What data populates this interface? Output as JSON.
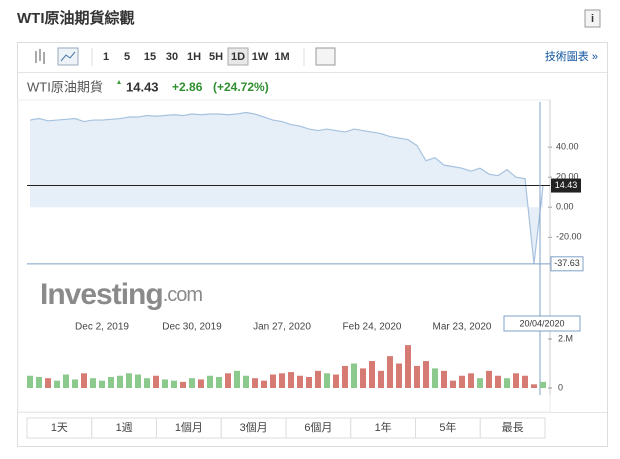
{
  "header": {
    "title": "WTI原油期貨綜觀",
    "info_icon": "i"
  },
  "toolbar": {
    "intervals": [
      "1",
      "5",
      "15",
      "30",
      "1H",
      "5H",
      "1D",
      "1W",
      "1M"
    ],
    "active_index": 6,
    "link": "技術圖表 »"
  },
  "quote": {
    "name": "WTI原油期貨",
    "price": 14.43,
    "change": "+2.86",
    "change_pct": "(+24.72%)"
  },
  "chart": {
    "type": "area",
    "values": [
      58,
      59,
      57.5,
      58,
      58.5,
      59,
      57,
      58,
      58,
      58.5,
      59,
      60,
      60,
      61,
      60.5,
      61,
      61.5,
      61,
      62,
      61.5,
      62,
      62,
      61.5,
      62,
      63,
      62,
      60,
      58,
      57,
      55,
      54,
      52,
      51,
      52,
      51,
      50,
      52,
      51,
      50,
      49,
      47,
      46,
      45,
      41,
      31,
      33,
      28,
      27,
      26,
      24,
      26,
      22,
      21,
      25,
      20,
      19,
      -37.63,
      14.43
    ],
    "ylim": [
      -75,
      70
    ],
    "yticks": [
      {
        "value": 40,
        "label": "40.00"
      },
      {
        "value": 20,
        "label": "20.00"
      },
      {
        "value": 0,
        "label": "0.00"
      },
      {
        "value": -20,
        "label": "-20.00"
      }
    ],
    "xticks": [
      {
        "value": 8,
        "label": "Dec 2, 2019"
      },
      {
        "value": 18,
        "label": "Dec 30, 2019"
      },
      {
        "value": 28,
        "label": "Jan 27, 2020"
      },
      {
        "value": 38,
        "label": "Feb 24, 2020"
      },
      {
        "value": 48,
        "label": "Mar 23, 2020"
      }
    ],
    "crosshair_date": "20/04/2020",
    "line_color": "#a6c2de",
    "fill_color": "#e6eef7",
    "volume": {
      "values": [
        0.5,
        0.45,
        0.4,
        0.3,
        0.55,
        0.35,
        0.6,
        0.4,
        0.3,
        0.45,
        0.5,
        0.6,
        0.55,
        0.4,
        0.5,
        0.35,
        0.3,
        0.25,
        0.4,
        0.35,
        0.5,
        0.45,
        0.6,
        0.7,
        0.5,
        0.4,
        0.3,
        0.55,
        0.6,
        0.65,
        0.5,
        0.45,
        0.7,
        0.6,
        0.55,
        0.9,
        1.0,
        0.8,
        1.1,
        0.7,
        1.3,
        1.0,
        1.75,
        0.9,
        1.1,
        0.8,
        0.7,
        0.3,
        0.5,
        0.6,
        0.4,
        0.7,
        0.5,
        0.4,
        0.6,
        0.5,
        0.15,
        0.25
      ],
      "ylim": [
        0,
        2
      ],
      "yticks": [
        {
          "value": 2,
          "label": "2.M"
        },
        0
      ],
      "up_color": "#8cc98c",
      "down_color": "#d67a74"
    }
  },
  "watermark": {
    "brand": "Investing",
    "domain": ".com"
  },
  "ranges": [
    "1天",
    "1週",
    "1個月",
    "3個月",
    "6個月",
    "1年",
    "5年",
    "最長"
  ]
}
